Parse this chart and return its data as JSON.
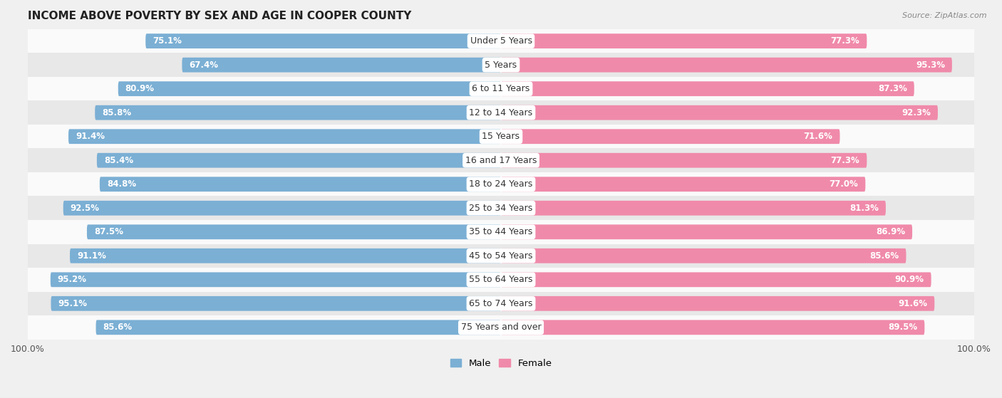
{
  "title": "INCOME ABOVE POVERTY BY SEX AND AGE IN COOPER COUNTY",
  "source": "Source: ZipAtlas.com",
  "categories": [
    "Under 5 Years",
    "5 Years",
    "6 to 11 Years",
    "12 to 14 Years",
    "15 Years",
    "16 and 17 Years",
    "18 to 24 Years",
    "25 to 34 Years",
    "35 to 44 Years",
    "45 to 54 Years",
    "55 to 64 Years",
    "65 to 74 Years",
    "75 Years and over"
  ],
  "male_values": [
    75.1,
    67.4,
    80.9,
    85.8,
    91.4,
    85.4,
    84.8,
    92.5,
    87.5,
    91.1,
    95.2,
    95.1,
    85.6
  ],
  "female_values": [
    77.3,
    95.3,
    87.3,
    92.3,
    71.6,
    77.3,
    77.0,
    81.3,
    86.9,
    85.6,
    90.9,
    91.6,
    89.5
  ],
  "male_color": "#7bafd4",
  "female_color": "#f08aaa",
  "male_label": "Male",
  "female_label": "Female",
  "background_color": "#f0f0f0",
  "row_light_color": "#fafafa",
  "row_dark_color": "#e8e8e8",
  "title_fontsize": 11,
  "label_fontsize": 9,
  "value_fontsize": 8.5,
  "axis_fontsize": 9
}
